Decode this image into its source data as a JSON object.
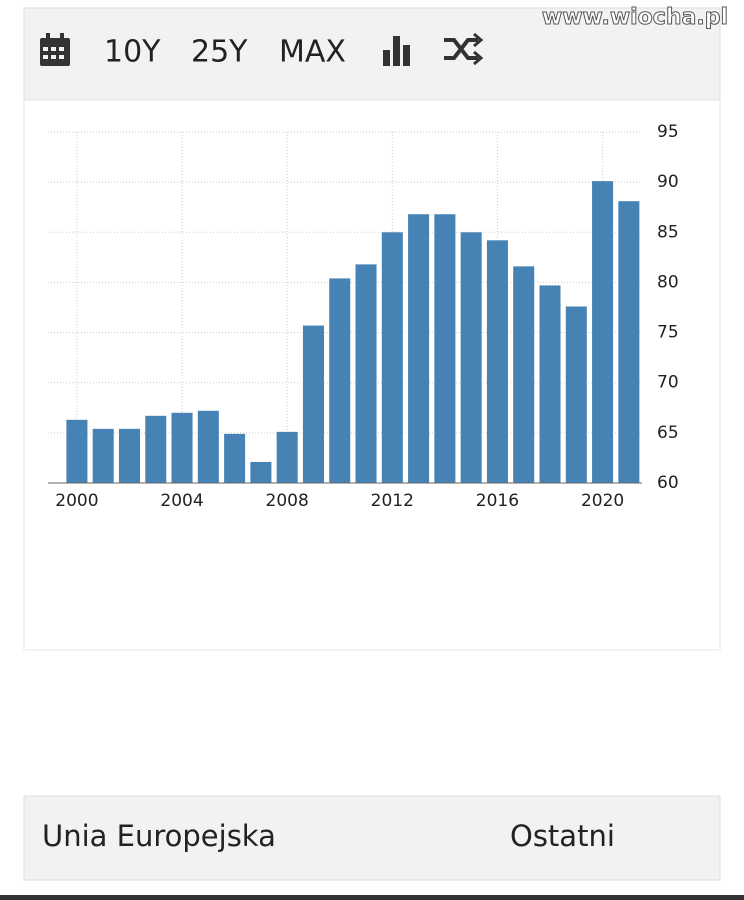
{
  "watermark": "www.wiocha.pl",
  "toolbar": {
    "buttons": [
      "10Y",
      "25Y",
      "MAX"
    ]
  },
  "chart_data": {
    "type": "bar",
    "x": [
      2000,
      2001,
      2002,
      2003,
      2004,
      2005,
      2006,
      2007,
      2008,
      2009,
      2010,
      2011,
      2012,
      2013,
      2014,
      2015,
      2016,
      2017,
      2018,
      2019,
      2020,
      2021
    ],
    "values": [
      66.3,
      65.4,
      65.4,
      66.7,
      67.0,
      67.2,
      64.9,
      62.1,
      65.1,
      75.7,
      80.4,
      81.8,
      85.0,
      86.8,
      86.8,
      85.0,
      84.2,
      81.6,
      79.7,
      77.6,
      90.1,
      88.1
    ],
    "color": "#4682b4",
    "xlim": [
      1998.9,
      2021.5
    ],
    "xticks": [
      2000,
      2004,
      2008,
      2012,
      2016,
      2020
    ],
    "ylim": [
      60,
      95
    ],
    "yticks": [
      60,
      65,
      70,
      75,
      80,
      85,
      90,
      95
    ],
    "grid": true
  },
  "table": {
    "header": [
      "Unia Europejska",
      "Ostatni"
    ]
  }
}
